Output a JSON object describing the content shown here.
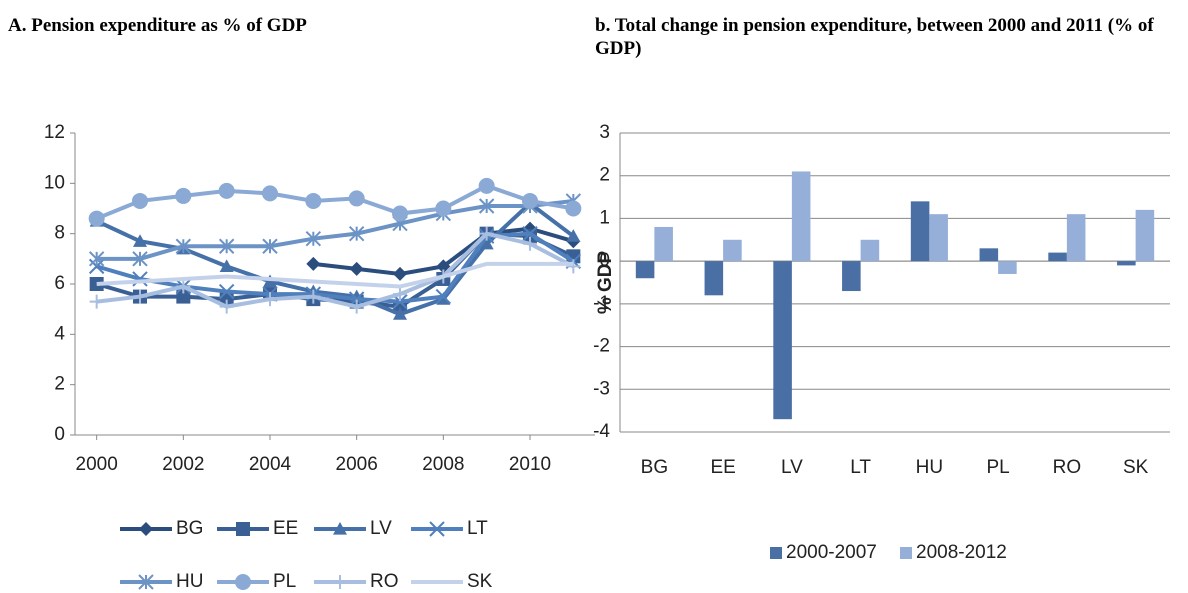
{
  "chart_data": [
    {
      "type": "line",
      "title": "A. Pension expenditure as % of GDP",
      "x": [
        2000,
        2001,
        2002,
        2003,
        2004,
        2005,
        2006,
        2007,
        2008,
        2009,
        2010,
        2011
      ],
      "xlim": [
        1999.5,
        2011.5
      ],
      "xticks": [
        2000,
        2002,
        2004,
        2006,
        2008,
        2010
      ],
      "ylim": [
        0,
        12
      ],
      "yticks": [
        0,
        2,
        4,
        6,
        8,
        10,
        12
      ],
      "grid": false,
      "legend": "bottom",
      "series": [
        {
          "name": "BG",
          "color": "#2b4d7e",
          "marker": "diamond",
          "values": [
            null,
            null,
            null,
            null,
            null,
            6.8,
            6.6,
            6.4,
            6.7,
            8.0,
            8.2,
            7.7
          ]
        },
        {
          "name": "EE",
          "color": "#3a5f95",
          "marker": "square",
          "values": [
            6.0,
            5.5,
            5.5,
            5.4,
            5.6,
            5.4,
            5.3,
            5.1,
            6.2,
            8.0,
            7.9,
            7.1
          ]
        },
        {
          "name": "LV",
          "color": "#4570a8",
          "marker": "triangle",
          "values": [
            8.5,
            7.7,
            7.4,
            6.7,
            6.1,
            5.7,
            5.5,
            4.8,
            5.4,
            7.6,
            9.2,
            7.9
          ]
        },
        {
          "name": "LT",
          "color": "#4f80bd",
          "marker": "x",
          "values": [
            6.7,
            6.2,
            5.9,
            5.7,
            5.6,
            5.6,
            5.4,
            5.3,
            5.5,
            7.9,
            8.0,
            6.9
          ]
        },
        {
          "name": "HU",
          "color": "#6b93c6",
          "marker": "asterisk",
          "values": [
            7.0,
            7.0,
            7.5,
            7.5,
            7.5,
            7.8,
            8.0,
            8.4,
            8.8,
            9.1,
            9.1,
            9.3
          ]
        },
        {
          "name": "PL",
          "color": "#8aa9d4",
          "marker": "circle",
          "values": [
            8.6,
            9.3,
            9.5,
            9.7,
            9.6,
            9.3,
            9.4,
            8.8,
            9.0,
            9.9,
            9.3,
            9.0
          ]
        },
        {
          "name": "RO",
          "color": "#a7bee0",
          "marker": "plus",
          "values": [
            5.3,
            5.5,
            5.9,
            5.1,
            5.4,
            5.5,
            5.1,
            5.6,
            6.3,
            8.0,
            7.6,
            6.7
          ]
        },
        {
          "name": "SK",
          "color": "#c3d2ea",
          "marker": "none",
          "values": [
            6.0,
            6.1,
            6.2,
            6.3,
            6.2,
            6.1,
            6.0,
            5.9,
            6.3,
            6.8,
            6.8,
            6.8
          ]
        }
      ]
    },
    {
      "type": "bar",
      "title": "b. Total change in pension expenditure, between 2000 and 2011  (% of GDP)",
      "y_label": "% GDP",
      "categories": [
        "BG",
        "EE",
        "LV",
        "LT",
        "HU",
        "PL",
        "RO",
        "SK"
      ],
      "ylim": [
        -4,
        3
      ],
      "yticks": [
        -4,
        -3,
        -2,
        -1,
        0,
        1,
        2,
        3
      ],
      "grid": true,
      "legend": "bottom",
      "series": [
        {
          "name": "2000-2007",
          "color": "#4a6fa5",
          "values": [
            -0.4,
            -0.8,
            -3.7,
            -0.7,
            1.4,
            0.3,
            0.2,
            -0.1
          ]
        },
        {
          "name": "2008-2012",
          "color": "#95afd8",
          "values": [
            0.8,
            0.5,
            2.1,
            0.5,
            1.1,
            -0.3,
            1.1,
            1.2
          ]
        }
      ]
    }
  ]
}
